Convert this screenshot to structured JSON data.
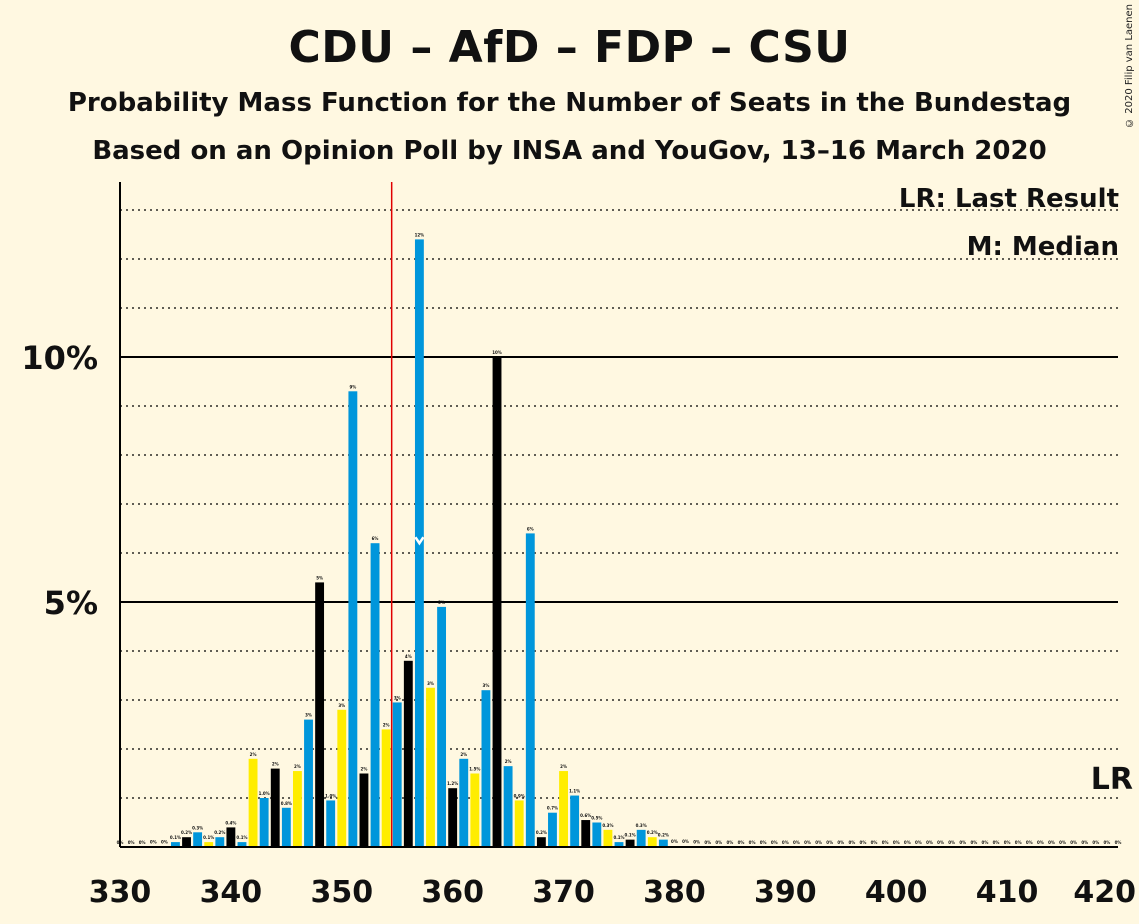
{
  "title": "CDU – AfD – FDP – CSU",
  "subtitle": "Probability Mass Function for the Number of Seats in the Bundestag",
  "subtitle2": "Based on an Opinion Poll by INSA and YouGov, 13–16 March 2020",
  "copyright": "© 2020 Filip van Laenen",
  "legend": {
    "lr": "LR: Last Result",
    "m": "M: Median"
  },
  "lr_label": "LR",
  "colors": {
    "blue": "#0096DB",
    "black": "#000000",
    "yellow": "#FFED00",
    "majority_line": "#E00000",
    "background": "#FFF8E1"
  },
  "chart_data": {
    "type": "bar",
    "x_range": [
      330,
      420
    ],
    "y_range": [
      0,
      13.5
    ],
    "x_ticks": [
      "330",
      "340",
      "350",
      "360",
      "370",
      "380",
      "390",
      "400",
      "410",
      "420"
    ],
    "y_ticks": [
      {
        "value": 5,
        "label": "5%"
      },
      {
        "value": 10,
        "label": "10%"
      }
    ],
    "majority_seat": 355,
    "median_seat": 357,
    "last_result_seat": 420,
    "bars": [
      {
        "seat": 330,
        "value": 0,
        "label": "0%",
        "color": "blue"
      },
      {
        "seat": 331,
        "value": 0,
        "label": "0%",
        "color": "black"
      },
      {
        "seat": 332,
        "value": 0,
        "label": "0%",
        "color": "yellow"
      },
      {
        "seat": 333,
        "value": 0.01,
        "label": "0%",
        "color": "blue"
      },
      {
        "seat": 334,
        "value": 0.01,
        "label": "0%",
        "color": "black"
      },
      {
        "seat": 335,
        "value": 0.1,
        "label": "0.1%",
        "color": "blue"
      },
      {
        "seat": 336,
        "value": 0.2,
        "label": "0.2%",
        "color": "black"
      },
      {
        "seat": 337,
        "value": 0.3,
        "label": "0.3%",
        "color": "blue"
      },
      {
        "seat": 338,
        "value": 0.1,
        "label": "0.1%",
        "color": "yellow"
      },
      {
        "seat": 339,
        "value": 0.2,
        "label": "0.2%",
        "color": "blue"
      },
      {
        "seat": 340,
        "value": 0.4,
        "label": "0.4%",
        "color": "black"
      },
      {
        "seat": 341,
        "value": 0.1,
        "label": "0.1%",
        "color": "blue"
      },
      {
        "seat": 342,
        "value": 1.8,
        "label": "2%",
        "color": "yellow"
      },
      {
        "seat": 343,
        "value": 1.0,
        "label": "1.0%",
        "color": "blue"
      },
      {
        "seat": 344,
        "value": 1.6,
        "label": "2%",
        "color": "black"
      },
      {
        "seat": 345,
        "value": 0.8,
        "label": "0.8%",
        "color": "blue"
      },
      {
        "seat": 346,
        "value": 1.55,
        "label": "2%",
        "color": "yellow"
      },
      {
        "seat": 347,
        "value": 2.6,
        "label": "3%",
        "color": "blue"
      },
      {
        "seat": 348,
        "value": 5.4,
        "label": "5%",
        "color": "black"
      },
      {
        "seat": 349,
        "value": 0.95,
        "label": "1.0%",
        "color": "blue"
      },
      {
        "seat": 350,
        "value": 2.8,
        "label": "3%",
        "color": "yellow"
      },
      {
        "seat": 351,
        "value": 9.3,
        "label": "9%",
        "color": "blue"
      },
      {
        "seat": 352,
        "value": 1.5,
        "label": "2%",
        "color": "black"
      },
      {
        "seat": 353,
        "value": 6.2,
        "label": "6%",
        "color": "blue"
      },
      {
        "seat": 354,
        "value": 2.4,
        "label": "2%",
        "color": "yellow"
      },
      {
        "seat": 355,
        "value": 2.95,
        "label": "3%",
        "color": "blue"
      },
      {
        "seat": 356,
        "value": 3.8,
        "label": "4%",
        "color": "black"
      },
      {
        "seat": 357,
        "value": 12.4,
        "label": "12%",
        "color": "blue"
      },
      {
        "seat": 358,
        "value": 3.25,
        "label": "3%",
        "color": "yellow"
      },
      {
        "seat": 359,
        "value": 4.9,
        "label": "5%",
        "color": "blue"
      },
      {
        "seat": 360,
        "value": 1.2,
        "label": "1.2%",
        "color": "black"
      },
      {
        "seat": 361,
        "value": 1.8,
        "label": "2%",
        "color": "blue"
      },
      {
        "seat": 362,
        "value": 1.5,
        "label": "1.5%",
        "color": "yellow"
      },
      {
        "seat": 363,
        "value": 3.2,
        "label": "3%",
        "color": "blue"
      },
      {
        "seat": 364,
        "value": 10.0,
        "label": "10%",
        "color": "black"
      },
      {
        "seat": 365,
        "value": 1.65,
        "label": "2%",
        "color": "blue"
      },
      {
        "seat": 366,
        "value": 0.95,
        "label": "0.9%",
        "color": "yellow"
      },
      {
        "seat": 367,
        "value": 6.4,
        "label": "6%",
        "color": "blue"
      },
      {
        "seat": 368,
        "value": 0.2,
        "label": "0.2%",
        "color": "black"
      },
      {
        "seat": 369,
        "value": 0.7,
        "label": "0.7%",
        "color": "blue"
      },
      {
        "seat": 370,
        "value": 1.55,
        "label": "2%",
        "color": "yellow"
      },
      {
        "seat": 371,
        "value": 1.05,
        "label": "1.1%",
        "color": "blue"
      },
      {
        "seat": 372,
        "value": 0.55,
        "label": "0.6%",
        "color": "black"
      },
      {
        "seat": 373,
        "value": 0.5,
        "label": "0.5%",
        "color": "blue"
      },
      {
        "seat": 374,
        "value": 0.35,
        "label": "0.3%",
        "color": "yellow"
      },
      {
        "seat": 375,
        "value": 0.1,
        "label": "0.1%",
        "color": "blue"
      },
      {
        "seat": 376,
        "value": 0.15,
        "label": "0.1%",
        "color": "black"
      },
      {
        "seat": 377,
        "value": 0.35,
        "label": "0.3%",
        "color": "blue"
      },
      {
        "seat": 378,
        "value": 0.2,
        "label": "0.2%",
        "color": "yellow"
      },
      {
        "seat": 379,
        "value": 0.15,
        "label": "0.2%",
        "color": "blue"
      },
      {
        "seat": 380,
        "value": 0.02,
        "label": "0%",
        "color": "black"
      },
      {
        "seat": 381,
        "value": 0.02,
        "label": "0%",
        "color": "blue"
      },
      {
        "seat": 382,
        "value": 0.01,
        "label": "0%",
        "color": "yellow"
      },
      {
        "seat": 383,
        "value": 0,
        "label": "0%",
        "color": "blue"
      },
      {
        "seat": 384,
        "value": 0,
        "label": "0%",
        "color": "black"
      },
      {
        "seat": 385,
        "value": 0,
        "label": "0%",
        "color": "blue"
      },
      {
        "seat": 386,
        "value": 0,
        "label": "0%",
        "color": "yellow"
      },
      {
        "seat": 387,
        "value": 0,
        "label": "0%",
        "color": "blue"
      },
      {
        "seat": 388,
        "value": 0,
        "label": "0%",
        "color": "black"
      },
      {
        "seat": 389,
        "value": 0,
        "label": "0%",
        "color": "blue"
      },
      {
        "seat": 390,
        "value": 0,
        "label": "0%",
        "color": "yellow"
      },
      {
        "seat": 391,
        "value": 0,
        "label": "0%",
        "color": "blue"
      },
      {
        "seat": 392,
        "value": 0,
        "label": "0%",
        "color": "black"
      },
      {
        "seat": 393,
        "value": 0,
        "label": "0%",
        "color": "blue"
      },
      {
        "seat": 394,
        "value": 0,
        "label": "0%",
        "color": "yellow"
      },
      {
        "seat": 395,
        "value": 0,
        "label": "0%",
        "color": "blue"
      },
      {
        "seat": 396,
        "value": 0,
        "label": "0%",
        "color": "black"
      },
      {
        "seat": 397,
        "value": 0,
        "label": "0%",
        "color": "blue"
      },
      {
        "seat": 398,
        "value": 0,
        "label": "0%",
        "color": "yellow"
      },
      {
        "seat": 399,
        "value": 0,
        "label": "0%",
        "color": "blue"
      },
      {
        "seat": 400,
        "value": 0,
        "label": "0%",
        "color": "black"
      },
      {
        "seat": 401,
        "value": 0,
        "label": "0%",
        "color": "blue"
      },
      {
        "seat": 402,
        "value": 0,
        "label": "0%",
        "color": "yellow"
      },
      {
        "seat": 403,
        "value": 0,
        "label": "0%",
        "color": "blue"
      },
      {
        "seat": 404,
        "value": 0,
        "label": "0%",
        "color": "black"
      },
      {
        "seat": 405,
        "value": 0,
        "label": "0%",
        "color": "blue"
      },
      {
        "seat": 406,
        "value": 0,
        "label": "0%",
        "color": "yellow"
      },
      {
        "seat": 407,
        "value": 0,
        "label": "0%",
        "color": "blue"
      },
      {
        "seat": 408,
        "value": 0,
        "label": "0%",
        "color": "black"
      },
      {
        "seat": 409,
        "value": 0,
        "label": "0%",
        "color": "blue"
      },
      {
        "seat": 410,
        "value": 0,
        "label": "0%",
        "color": "yellow"
      },
      {
        "seat": 411,
        "value": 0,
        "label": "0%",
        "color": "blue"
      },
      {
        "seat": 412,
        "value": 0,
        "label": "0%",
        "color": "black"
      },
      {
        "seat": 413,
        "value": 0,
        "label": "0%",
        "color": "blue"
      },
      {
        "seat": 414,
        "value": 0,
        "label": "0%",
        "color": "yellow"
      },
      {
        "seat": 415,
        "value": 0,
        "label": "0%",
        "color": "blue"
      },
      {
        "seat": 416,
        "value": 0,
        "label": "0%",
        "color": "black"
      },
      {
        "seat": 417,
        "value": 0,
        "label": "0%",
        "color": "blue"
      },
      {
        "seat": 418,
        "value": 0,
        "label": "0%",
        "color": "yellow"
      },
      {
        "seat": 419,
        "value": 0,
        "label": "0%",
        "color": "blue"
      },
      {
        "seat": 420,
        "value": 0,
        "label": "0%",
        "color": "black"
      }
    ]
  }
}
